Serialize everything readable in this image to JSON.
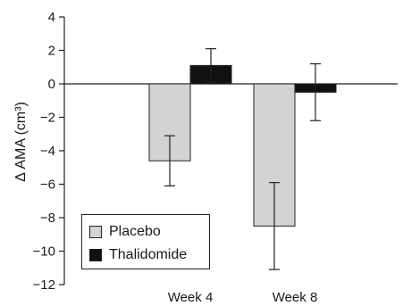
{
  "chart_data": {
    "type": "bar",
    "title": "",
    "xlabel": "",
    "ylabel": "Δ AMA (cm³)",
    "ylim": [
      -12,
      4
    ],
    "yticks": [
      4,
      2,
      0,
      -2,
      -4,
      -6,
      -8,
      -10,
      -12
    ],
    "categories": [
      "Week 4",
      "Week 8"
    ],
    "series": [
      {
        "name": "Placebo",
        "color": "#d3d3d3",
        "values": [
          -4.6,
          -8.5
        ],
        "error": [
          1.5,
          2.6
        ]
      },
      {
        "name": "Thalidomide",
        "color": "#111111",
        "values": [
          1.1,
          -0.5
        ],
        "error": [
          1.0,
          1.7
        ]
      }
    ],
    "legend_position": "bottom-left",
    "grid": false
  }
}
